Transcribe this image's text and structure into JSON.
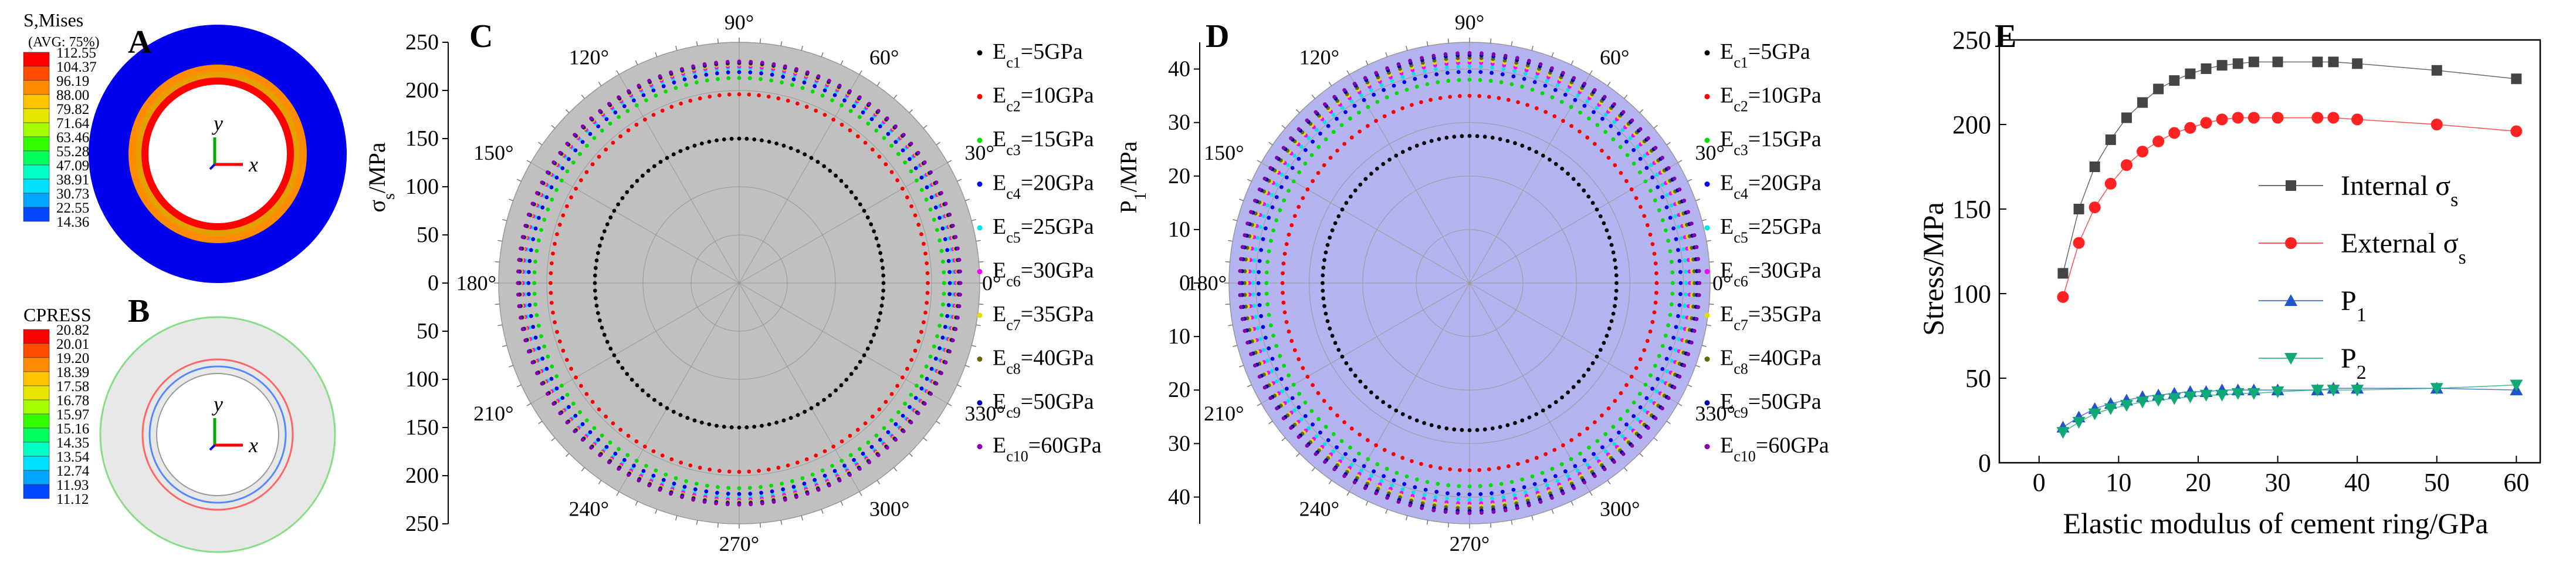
{
  "panels": {
    "A": {
      "label": "A",
      "legend_title": "S,Mises",
      "legend_subtitle": "(AVG: 75%)",
      "values": [
        "112.55",
        "104.37",
        "96.19",
        "88.00",
        "79.82",
        "71.64",
        "63.46",
        "55.28",
        "47.09",
        "38.91",
        "30.73",
        "22.55",
        "14.36"
      ],
      "colors": [
        "#ff0000",
        "#ff4a00",
        "#ff8c00",
        "#ffc400",
        "#e6e600",
        "#a6ff00",
        "#33ff00",
        "#00ff5a",
        "#00ffc2",
        "#00e1ff",
        "#00a6ff",
        "#0047ff",
        "#0000ff"
      ],
      "axis_y": "y",
      "axis_x": "x"
    },
    "B": {
      "label": "B",
      "legend_title": "CPRESS",
      "values": [
        "20.82",
        "20.01",
        "19.20",
        "18.39",
        "17.58",
        "16.78",
        "15.97",
        "15.16",
        "14.35",
        "13.54",
        "12.74",
        "11.93",
        "11.12"
      ],
      "colors": [
        "#ff0000",
        "#ff4a00",
        "#ff8c00",
        "#ffc400",
        "#e6e600",
        "#a6ff00",
        "#33ff00",
        "#00ff5a",
        "#00ffc2",
        "#00e1ff",
        "#00a6ff",
        "#0047ff",
        "#0000ff"
      ],
      "axis_y": "y",
      "axis_x": "x"
    }
  },
  "chart_data": [
    {
      "type": "polar",
      "panel": "C",
      "label": "C",
      "ylabel_main": "σ",
      "ylabel_sub": "s",
      "ylabel_unit": "/MPa",
      "r_ticks": [
        "0",
        "50",
        "100",
        "150",
        "200",
        "250"
      ],
      "r_ticks_upper": [
        "250",
        "200",
        "150",
        "100",
        "50",
        "0"
      ],
      "r_ticks_lower": [
        "50",
        "100",
        "150",
        "200",
        "250"
      ],
      "rmax": 250,
      "angle_labels": [
        "0°",
        "30°",
        "60°",
        "90°",
        "120°",
        "150°",
        "180°",
        "210°",
        "240°",
        "270°",
        "300°",
        "330°"
      ],
      "bg_color": "#c0c0c0",
      "series": [
        {
          "name": "Ec1=5GPa",
          "sub": "c1",
          "value": "=5GPa",
          "r": 150,
          "color": "#000000"
        },
        {
          "name": "Ec2=10GPa",
          "sub": "c2",
          "value": "=10GPa",
          "r": 196,
          "color": "#ff0000"
        },
        {
          "name": "Ec3=15GPa",
          "sub": "c3",
          "value": "=15GPa",
          "r": 213,
          "color": "#00dd00"
        },
        {
          "name": "Ec4=20GPa",
          "sub": "c4",
          "value": "=20GPa",
          "r": 219,
          "color": "#0000ee"
        },
        {
          "name": "Ec5=25GPa",
          "sub": "c5",
          "value": "=25GPa",
          "r": 223,
          "color": "#00e5e5"
        },
        {
          "name": "Ec6=30GPa",
          "sub": "c6",
          "value": "=30GPa",
          "r": 225,
          "color": "#ff00ff"
        },
        {
          "name": "Ec7=35GPa",
          "sub": "c7",
          "value": "=35GPa",
          "r": 227,
          "color": "#e0e000"
        },
        {
          "name": "Ec8=40GPa",
          "sub": "c8",
          "value": "=40GPa",
          "r": 228,
          "color": "#666600"
        },
        {
          "name": "Ec9=50GPa",
          "sub": "c9",
          "value": "=50GPa",
          "r": 229,
          "color": "#0000aa"
        },
        {
          "name": "Ec10=60GPa",
          "sub": "c10",
          "value": "=60GPa",
          "r": 230,
          "color": "#8800aa"
        }
      ]
    },
    {
      "type": "polar",
      "panel": "D",
      "label": "D",
      "ylabel_main": "P",
      "ylabel_sub": "1",
      "ylabel_unit": "/MPa",
      "r_ticks": [
        "0",
        "10",
        "20",
        "30",
        "40"
      ],
      "r_ticks_upper": [
        "40",
        "30",
        "20",
        "10",
        "0"
      ],
      "r_ticks_lower": [
        "10",
        "20",
        "30",
        "40"
      ],
      "rmax": 45,
      "angle_labels": [
        "0°",
        "30°",
        "60°",
        "90°",
        "120°",
        "150°",
        "180°",
        "210°",
        "240°",
        "270°",
        "300°",
        "330°"
      ],
      "bg_color": "#b4b4f0",
      "series": [
        {
          "name": "Ec1=5GPa",
          "sub": "c1",
          "value": "=5GPa",
          "r": 27.5,
          "color": "#000000"
        },
        {
          "name": "Ec2=10GPa",
          "sub": "c2",
          "value": "=10GPa",
          "r": 35,
          "color": "#ff0000"
        },
        {
          "name": "Ec3=15GPa",
          "sub": "c3",
          "value": "=15GPa",
          "r": 38,
          "color": "#00dd00"
        },
        {
          "name": "Ec4=20GPa",
          "sub": "c4",
          "value": "=20GPa",
          "r": 39.5,
          "color": "#0000ee"
        },
        {
          "name": "Ec5=25GPa",
          "sub": "c5",
          "value": "=25GPa",
          "r": 40.5,
          "color": "#00e5e5"
        },
        {
          "name": "Ec6=30GPa",
          "sub": "c6",
          "value": "=30GPa",
          "r": 41.2,
          "color": "#ff00ff"
        },
        {
          "name": "Ec7=35GPa",
          "sub": "c7",
          "value": "=35GPa",
          "r": 41.7,
          "color": "#e0e000"
        },
        {
          "name": "Ec8=40GPa",
          "sub": "c8",
          "value": "=40GPa",
          "r": 42.1,
          "color": "#666600"
        },
        {
          "name": "Ec9=50GPa",
          "sub": "c9",
          "value": "=50GPa",
          "r": 42.6,
          "color": "#0000aa"
        },
        {
          "name": "Ec10=60GPa",
          "sub": "c10",
          "value": "=60GPa",
          "r": 43.0,
          "color": "#8800aa"
        }
      ]
    },
    {
      "type": "line",
      "panel": "E",
      "label": "E",
      "xlabel": "Elastic modulus of cement ring/GPa",
      "ylabel": "Stress/MPa",
      "xlim": [
        -5,
        63
      ],
      "ylim": [
        0,
        250
      ],
      "xticks": [
        0,
        10,
        20,
        30,
        40,
        50,
        60
      ],
      "yticks": [
        0,
        50,
        100,
        150,
        200,
        250
      ],
      "series": [
        {
          "name": "Internal σs",
          "base": "Internal σ",
          "sub": "s",
          "color": "#444444",
          "marker": "square",
          "x": [
            3,
            5,
            7,
            9,
            11,
            13,
            15,
            17,
            19,
            21,
            23,
            25,
            27,
            30,
            35,
            37,
            40,
            50,
            60
          ],
          "y": [
            112,
            150,
            175,
            191,
            204,
            213,
            221,
            226,
            230,
            233,
            235,
            236,
            237,
            237,
            237,
            237,
            236,
            232,
            227
          ]
        },
        {
          "name": "External σs",
          "base": "External σ",
          "sub": "s",
          "color": "#ff2222",
          "marker": "circle",
          "x": [
            3,
            5,
            7,
            9,
            11,
            13,
            15,
            17,
            19,
            21,
            23,
            25,
            27,
            30,
            35,
            37,
            40,
            50,
            60
          ],
          "y": [
            98,
            130,
            151,
            165,
            176,
            184,
            190,
            195,
            198,
            201,
            203,
            204,
            204,
            204,
            204,
            204,
            203,
            200,
            196
          ]
        },
        {
          "name": "P1",
          "base": "P",
          "sub": "1",
          "color": "#2255cc",
          "marker": "triangle-up",
          "x": [
            3,
            5,
            7,
            9,
            11,
            13,
            15,
            17,
            19,
            21,
            23,
            25,
            27,
            30,
            35,
            37,
            40,
            50,
            60
          ],
          "y": [
            21,
            27,
            32,
            35,
            37,
            39,
            40,
            41,
            42,
            42,
            43,
            43,
            43,
            43,
            43,
            44,
            44,
            44,
            43
          ]
        },
        {
          "name": "P2",
          "base": "P",
          "sub": "2",
          "color": "#11aa77",
          "marker": "triangle-down",
          "x": [
            3,
            5,
            7,
            9,
            11,
            13,
            15,
            17,
            19,
            21,
            23,
            25,
            27,
            30,
            35,
            37,
            40,
            50,
            60
          ],
          "y": [
            18,
            24,
            29,
            32,
            34,
            36,
            37,
            38,
            39,
            40,
            40,
            41,
            41,
            42,
            43,
            43,
            43,
            44,
            46
          ]
        }
      ]
    }
  ]
}
